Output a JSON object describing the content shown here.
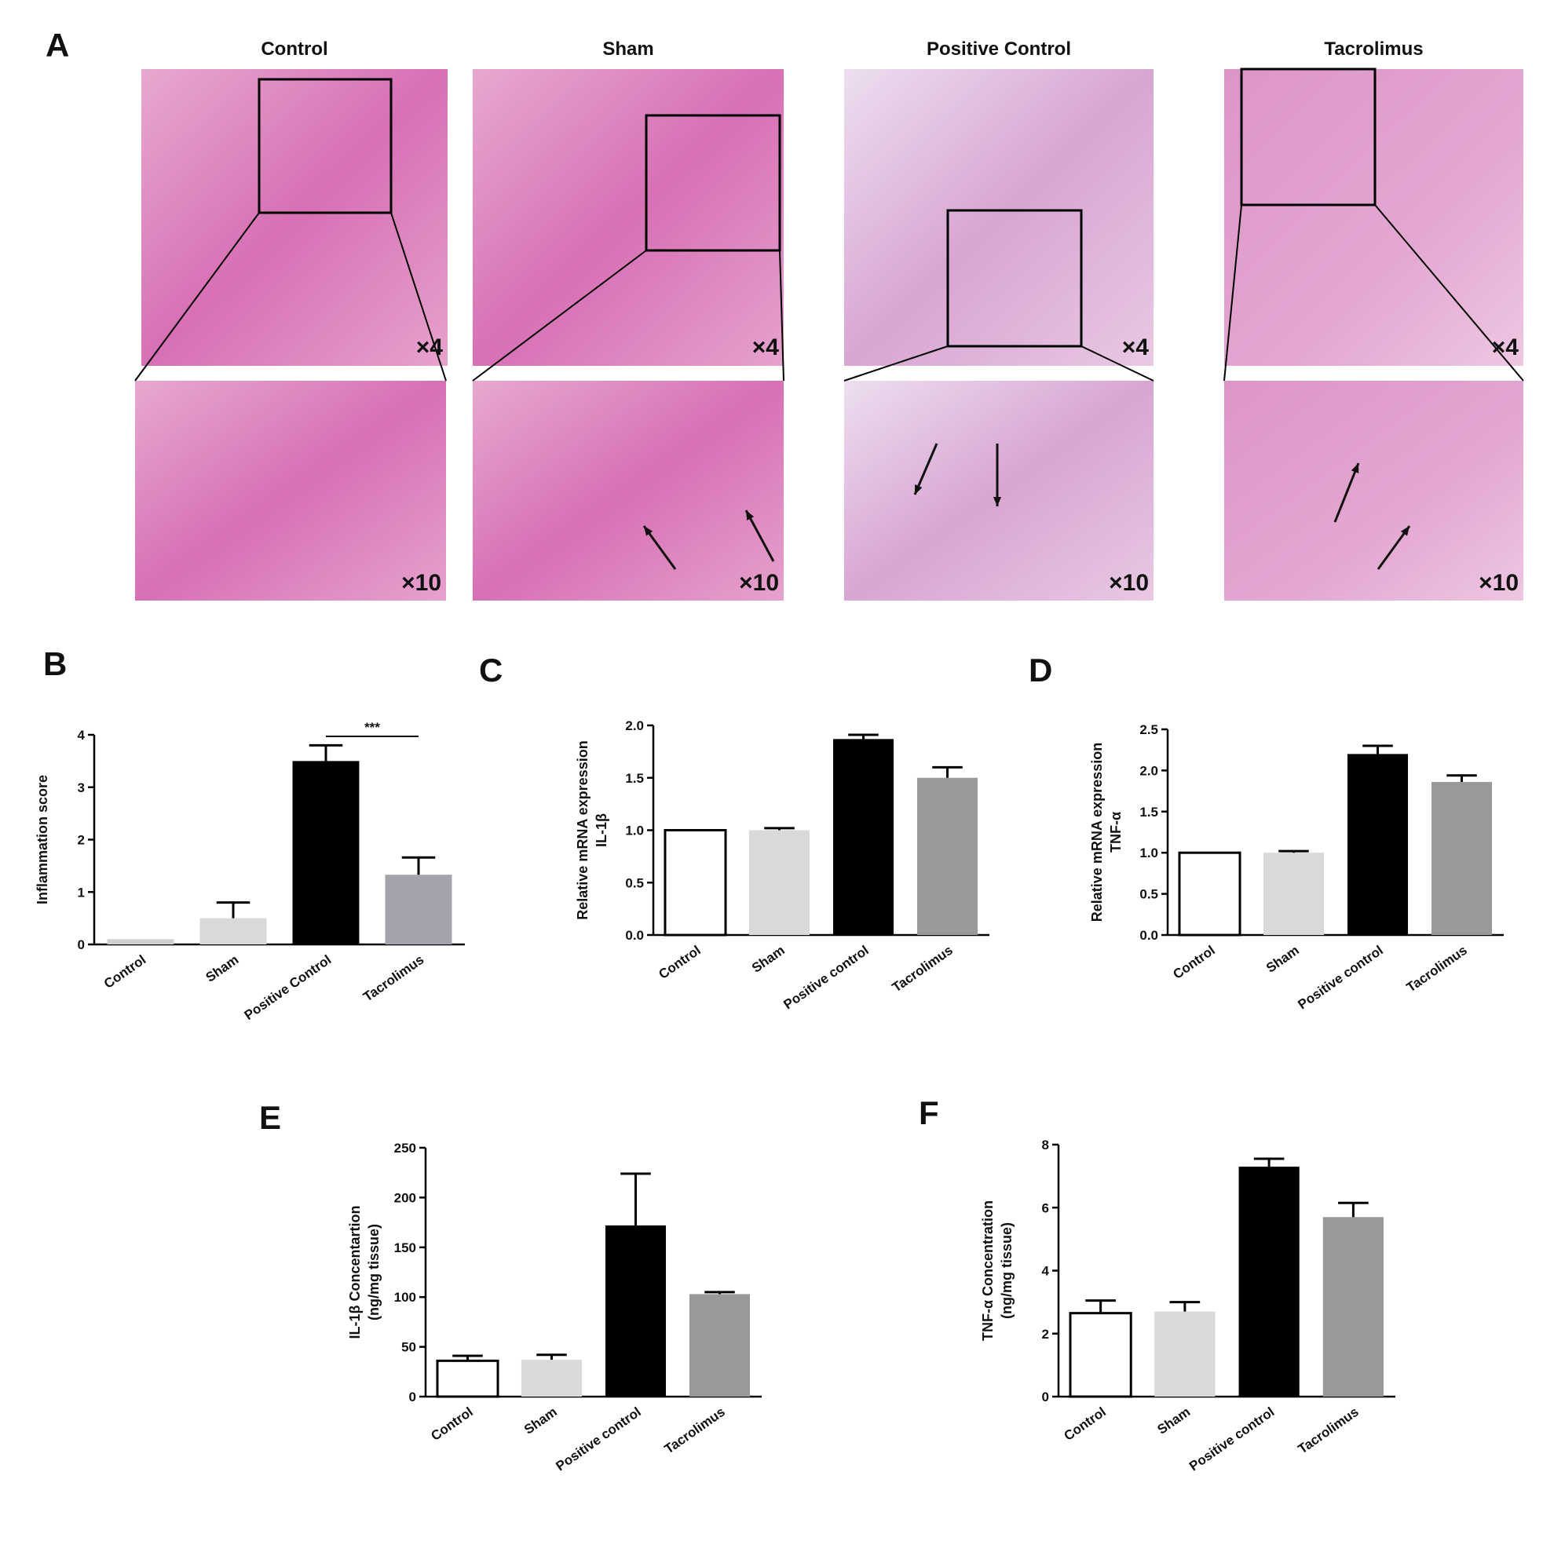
{
  "panel_a": {
    "label": "A",
    "columns": [
      {
        "title": "Control",
        "top_mag": "×4",
        "bottom_mag": "×10"
      },
      {
        "title": "Sham",
        "top_mag": "×4",
        "bottom_mag": "×10"
      },
      {
        "title": "Positive Control",
        "top_mag": "×4",
        "bottom_mag": "×10"
      },
      {
        "title": "Tacrolimus",
        "top_mag": "×4",
        "bottom_mag": "×10"
      }
    ]
  },
  "chart_data": [
    {
      "type": "bar",
      "label": "B",
      "y_label": [
        "Inflammation score"
      ],
      "categories": [
        "Control",
        "Sham",
        "Positive Control",
        "Tacrolimus"
      ],
      "values": [
        0.1,
        0.5,
        3.5,
        1.33
      ],
      "errors": [
        null,
        0.3,
        0.3,
        0.33
      ],
      "colors": [
        "#d0d0d0",
        "#d9d9d9",
        "#000000",
        "#a3a3ab"
      ],
      "ylim": [
        0,
        4
      ],
      "yticks": [
        0,
        1,
        2,
        3,
        4
      ],
      "annotation": "***"
    },
    {
      "type": "bar",
      "label": "C",
      "y_label": [
        "Relative mRNA expression",
        "IL-1β"
      ],
      "categories": [
        "Control",
        "Sham",
        "Positive control",
        "Tacrolimus"
      ],
      "values": [
        1.0,
        1.0,
        1.87,
        1.5
      ],
      "errors": [
        null,
        0.02,
        0.04,
        0.1
      ],
      "colors": [
        "#ffffff",
        "#d9d9d9",
        "#000000",
        "#999999"
      ],
      "ylim": [
        0,
        2
      ],
      "yticks": [
        {
          "value": 0,
          "label": "0.0"
        },
        {
          "value": 0.5,
          "label": "0.5"
        },
        {
          "value": 1,
          "label": "1.0"
        },
        {
          "value": 1.5,
          "label": "1.5"
        },
        {
          "value": 2,
          "label": "2.0"
        }
      ]
    },
    {
      "type": "bar",
      "label": "D",
      "y_label": [
        "Relative mRNA expression",
        "TNF-α"
      ],
      "categories": [
        "Control",
        "Sham",
        "Positive control",
        "Tacrolimus"
      ],
      "values": [
        1.0,
        1.0,
        2.2,
        1.86
      ],
      "errors": [
        null,
        0.02,
        0.1,
        0.08
      ],
      "colors": [
        "#ffffff",
        "#d9d9d9",
        "#000000",
        "#999999"
      ],
      "ylim": [
        0,
        2.5
      ],
      "yticks": [
        {
          "value": 0,
          "label": "0.0"
        },
        {
          "value": 0.5,
          "label": "0.5"
        },
        {
          "value": 1,
          "label": "1.0"
        },
        {
          "value": 1.5,
          "label": "1.5"
        },
        {
          "value": 2,
          "label": "2.0"
        },
        2.5
      ]
    },
    {
      "type": "bar",
      "label": "E",
      "y_label": [
        "IL-1β Concentartion",
        "(ng/mg tissue)"
      ],
      "categories": [
        "Control",
        "Sham",
        "Positive control",
        "Tacrolimus"
      ],
      "values": [
        36,
        37,
        172,
        103
      ],
      "errors": [
        5,
        5,
        52,
        2
      ],
      "colors": [
        "#ffffff",
        "#d9d9d9",
        "#000000",
        "#999999"
      ],
      "ylim": [
        0,
        250
      ],
      "yticks": [
        0,
        50,
        100,
        150,
        200,
        250
      ]
    },
    {
      "type": "bar",
      "label": "F",
      "y_label": [
        "TNF-α Concentration",
        "(ng/mg tissue)"
      ],
      "categories": [
        "Control",
        "Sham",
        "Positive control",
        "Tacrolimus"
      ],
      "values": [
        2.65,
        2.7,
        7.3,
        5.7
      ],
      "errors": [
        0.4,
        0.3,
        0.25,
        0.45
      ],
      "colors": [
        "#ffffff",
        "#d9d9d9",
        "#000000",
        "#999999"
      ],
      "ylim": [
        0,
        8
      ],
      "yticks": [
        0,
        2,
        4,
        6,
        8
      ]
    }
  ]
}
